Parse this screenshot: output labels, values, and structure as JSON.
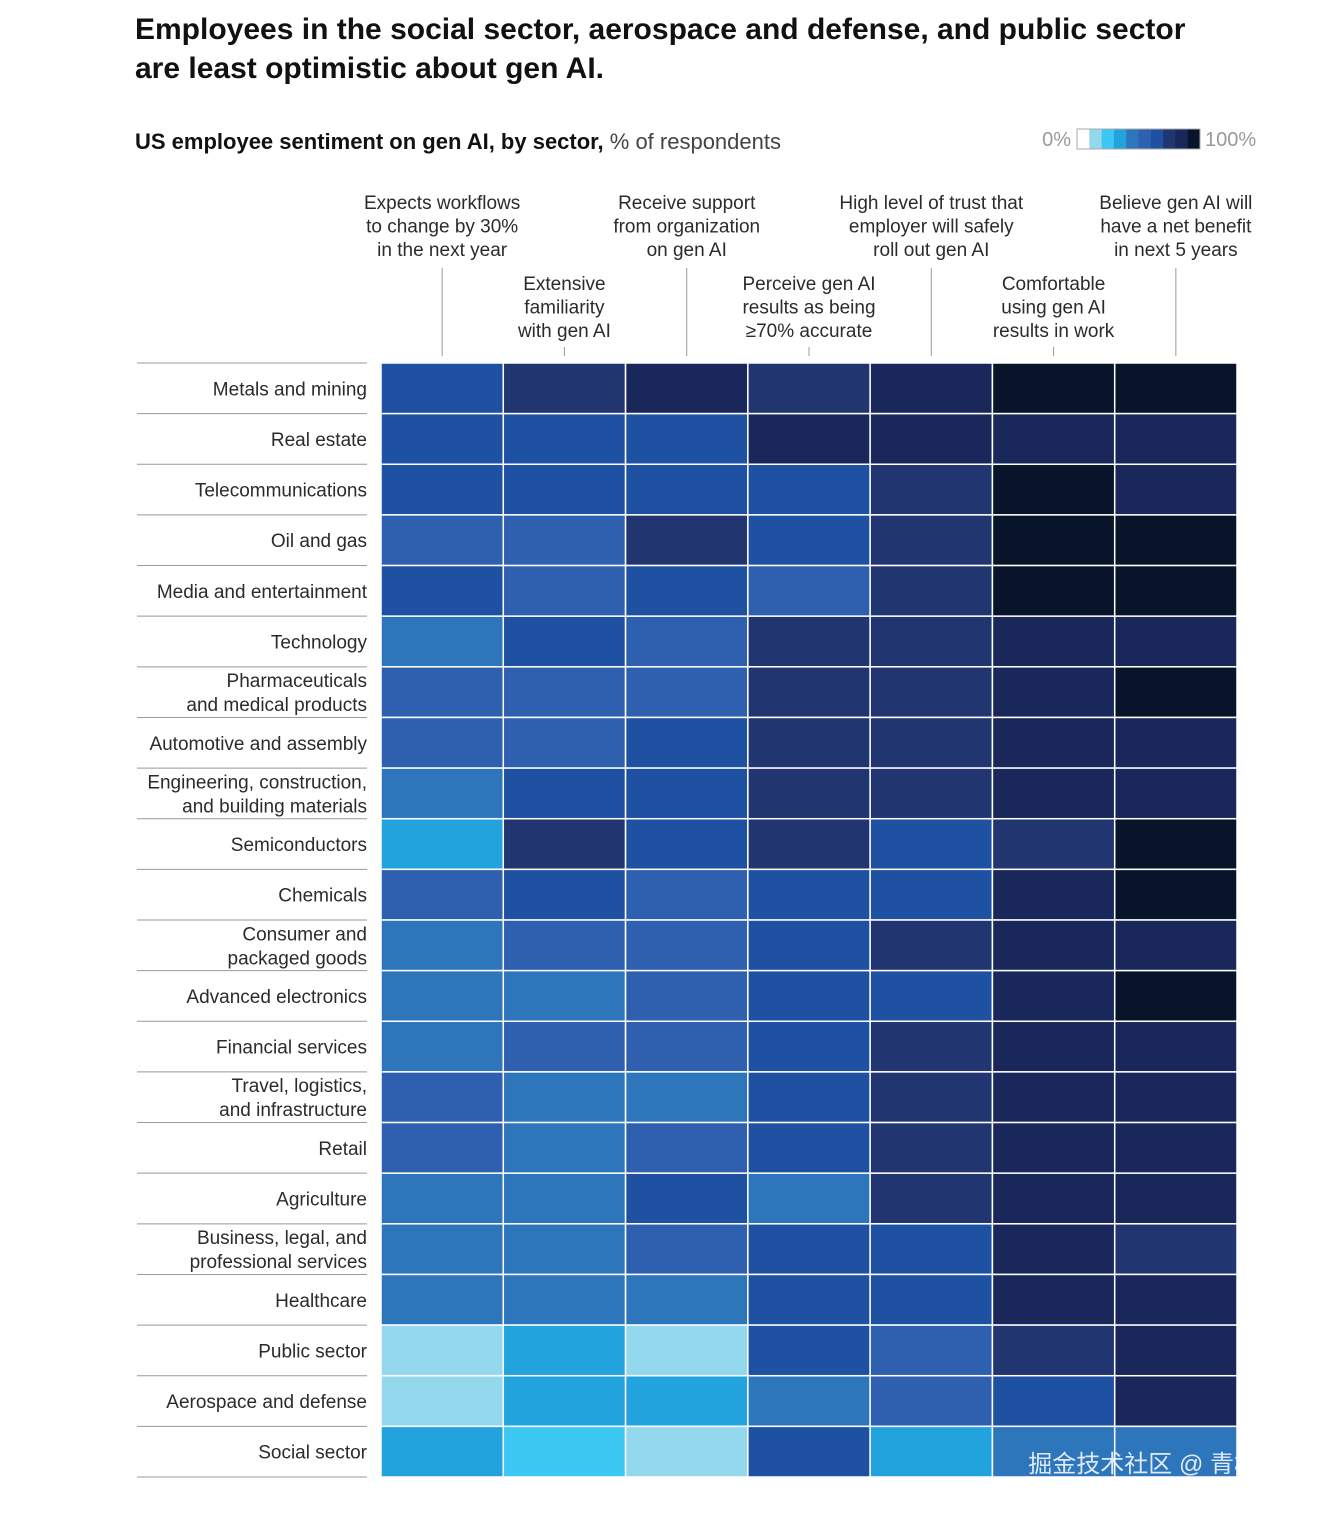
{
  "chart_data": {
    "type": "heatmap",
    "title": [
      "Employees in the social sector, aerospace and defense, and public sector",
      "are least optimistic about gen AI."
    ],
    "subtitle": "US employee sentiment on gen AI, by sector,",
    "unit_note": "% of respondents",
    "columns": [
      [
        "Expects workflows",
        "to change by 30%",
        "in the next year"
      ],
      [
        "Extensive",
        "familiarity",
        "with gen AI"
      ],
      [
        "Receive support",
        "from organization",
        "on gen AI"
      ],
      [
        "Perceive gen AI",
        "results as being",
        "≥70% accurate"
      ],
      [
        "High level of trust that",
        "employer will safely",
        "roll out gen AI"
      ],
      [
        "Comfortable",
        "using gen AI",
        "results in work"
      ],
      [
        "Believe gen AI will",
        "have a net benefit",
        "in next 5 years"
      ]
    ],
    "rows": [
      [
        "Metals and mining"
      ],
      [
        "Real estate"
      ],
      [
        "Telecommunications"
      ],
      [
        "Oil and gas"
      ],
      [
        "Media and entertainment"
      ],
      [
        "Technology"
      ],
      [
        "Pharmaceuticals",
        "and medical products"
      ],
      [
        "Automotive and assembly"
      ],
      [
        "Engineering, construction,",
        "and building materials"
      ],
      [
        "Semiconductors"
      ],
      [
        "Chemicals"
      ],
      [
        "Consumer and",
        "packaged goods"
      ],
      [
        "Advanced electronics"
      ],
      [
        "Financial services"
      ],
      [
        "Travel, logistics,",
        "and infrastructure"
      ],
      [
        "Retail"
      ],
      [
        "Agriculture"
      ],
      [
        "Business, legal, and",
        "professional services"
      ],
      [
        "Healthcare"
      ],
      [
        "Public sector"
      ],
      [
        "Aerospace and defense"
      ],
      [
        "Social sector"
      ]
    ],
    "values": [
      [
        65,
        75,
        85,
        75,
        85,
        95,
        95
      ],
      [
        65,
        65,
        65,
        85,
        85,
        85,
        85
      ],
      [
        65,
        65,
        65,
        65,
        75,
        95,
        85
      ],
      [
        55,
        55,
        75,
        65,
        75,
        95,
        95
      ],
      [
        65,
        55,
        65,
        55,
        75,
        95,
        95
      ],
      [
        45,
        65,
        55,
        75,
        75,
        85,
        85
      ],
      [
        55,
        55,
        55,
        75,
        75,
        85,
        95
      ],
      [
        55,
        55,
        65,
        75,
        75,
        85,
        85
      ],
      [
        45,
        65,
        65,
        75,
        75,
        85,
        85
      ],
      [
        35,
        75,
        65,
        75,
        65,
        75,
        95
      ],
      [
        55,
        65,
        55,
        65,
        65,
        85,
        95
      ],
      [
        45,
        55,
        55,
        65,
        75,
        85,
        85
      ],
      [
        45,
        45,
        55,
        65,
        65,
        85,
        95
      ],
      [
        45,
        55,
        55,
        65,
        75,
        85,
        85
      ],
      [
        55,
        45,
        45,
        65,
        75,
        85,
        85
      ],
      [
        55,
        45,
        55,
        65,
        75,
        85,
        85
      ],
      [
        45,
        45,
        65,
        45,
        75,
        85,
        85
      ],
      [
        45,
        45,
        55,
        65,
        65,
        85,
        75
      ],
      [
        45,
        45,
        45,
        65,
        65,
        85,
        85
      ],
      [
        15,
        35,
        15,
        65,
        55,
        75,
        85
      ],
      [
        15,
        35,
        35,
        45,
        55,
        65,
        85
      ],
      [
        35,
        25,
        15,
        65,
        35,
        45,
        45
      ]
    ],
    "clim": [
      0,
      100
    ],
    "colors": [
      "#ffffff",
      "#94d8ee",
      "#3cc8f2",
      "#22a3dd",
      "#2e76bc",
      "#2f5faf",
      "#1e51a2",
      "#213570",
      "#19275a",
      "#07142a"
    ],
    "colorbar_ticks": [
      {
        "value": 0,
        "label": "0%"
      },
      {
        "value": 100,
        "label": "100%"
      }
    ],
    "watermark": "掘金技术社区 @ 青梅主码"
  }
}
